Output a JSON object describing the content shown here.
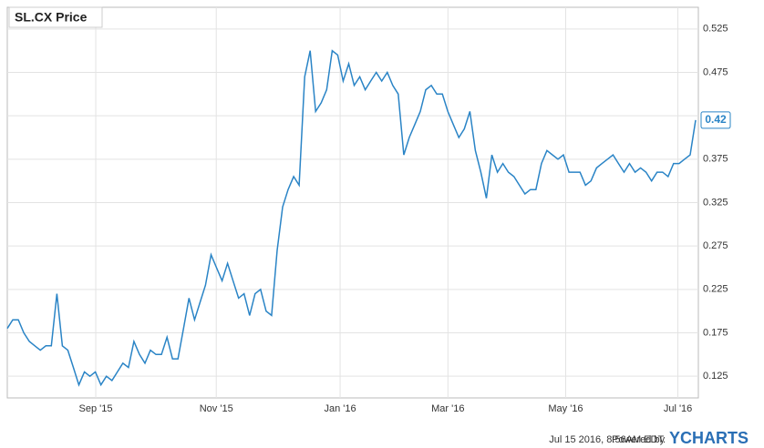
{
  "chart_data": {
    "type": "line",
    "title": "SL.CX Price",
    "color": "#2a84c6",
    "grid": true,
    "values": [
      0.18,
      0.19,
      0.19,
      0.175,
      0.165,
      0.16,
      0.155,
      0.16,
      0.16,
      0.22,
      0.16,
      0.155,
      0.135,
      0.115,
      0.13,
      0.125,
      0.13,
      0.115,
      0.125,
      0.12,
      0.13,
      0.14,
      0.135,
      0.165,
      0.15,
      0.14,
      0.155,
      0.15,
      0.15,
      0.17,
      0.145,
      0.145,
      0.18,
      0.215,
      0.19,
      0.21,
      0.23,
      0.265,
      0.25,
      0.235,
      0.255,
      0.235,
      0.215,
      0.22,
      0.195,
      0.22,
      0.225,
      0.2,
      0.195,
      0.27,
      0.32,
      0.34,
      0.355,
      0.345,
      0.47,
      0.5,
      0.43,
      0.44,
      0.455,
      0.5,
      0.495,
      0.465,
      0.485,
      0.46,
      0.47,
      0.455,
      0.465,
      0.475,
      0.465,
      0.475,
      0.46,
      0.45,
      0.38,
      0.4,
      0.415,
      0.43,
      0.455,
      0.46,
      0.45,
      0.45,
      0.43,
      0.415,
      0.4,
      0.41,
      0.43,
      0.385,
      0.36,
      0.33,
      0.38,
      0.36,
      0.37,
      0.36,
      0.355,
      0.345,
      0.335,
      0.34,
      0.34,
      0.37,
      0.385,
      0.38,
      0.375,
      0.38,
      0.36,
      0.36,
      0.36,
      0.345,
      0.35,
      0.365,
      0.37,
      0.375,
      0.38,
      0.37,
      0.36,
      0.37,
      0.36,
      0.365,
      0.36,
      0.35,
      0.36,
      0.36,
      0.355,
      0.37,
      0.37,
      0.375,
      0.38,
      0.42
    ],
    "xlim": [
      0,
      125
    ],
    "xticks": [
      {
        "value": 16,
        "label": "Sep '15"
      },
      {
        "value": 37.8,
        "label": "Nov '15"
      },
      {
        "value": 60.2,
        "label": "Jan '16"
      },
      {
        "value": 79.7,
        "label": "Mar '16"
      },
      {
        "value": 101,
        "label": "May '16"
      },
      {
        "value": 121.3,
        "label": "Jul '16"
      }
    ],
    "ylim": [
      0.1,
      0.55
    ],
    "yticks": [
      0.125,
      0.175,
      0.225,
      0.275,
      0.325,
      0.375,
      0.425,
      0.475,
      0.525
    ]
  },
  "footer": {
    "timestamp": "Jul 15 2016, 8:56AM EDT.",
    "powered_by": "Powered by",
    "brand": "YCHARTS"
  }
}
